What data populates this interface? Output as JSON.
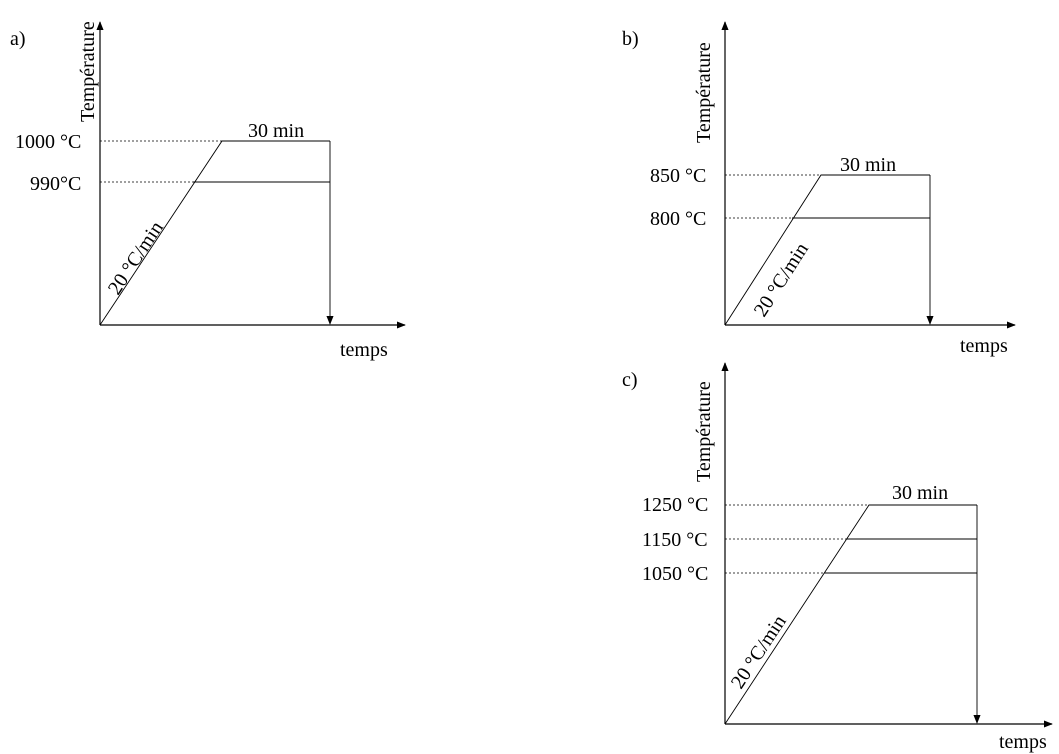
{
  "diagrams": [
    {
      "panel_label": "a)",
      "y_axis_label": "Température",
      "x_axis_label": "temps",
      "ramp_label": "20 °C/min",
      "hold_label": "30 min",
      "level_labels": [
        "1000 °C",
        "990°C"
      ]
    },
    {
      "panel_label": "b)",
      "y_axis_label": "Température",
      "x_axis_label": "temps",
      "ramp_label": "20 °C/min",
      "hold_label": "30 min",
      "level_labels": [
        "850 °C",
        "800 °C"
      ]
    },
    {
      "panel_label": "c)",
      "y_axis_label": "Température",
      "x_axis_label": "temps",
      "ramp_label": "20 °C/min",
      "hold_label": "30 min",
      "level_labels": [
        "1250 °C",
        "1150 °C",
        "1050 °C"
      ]
    }
  ]
}
